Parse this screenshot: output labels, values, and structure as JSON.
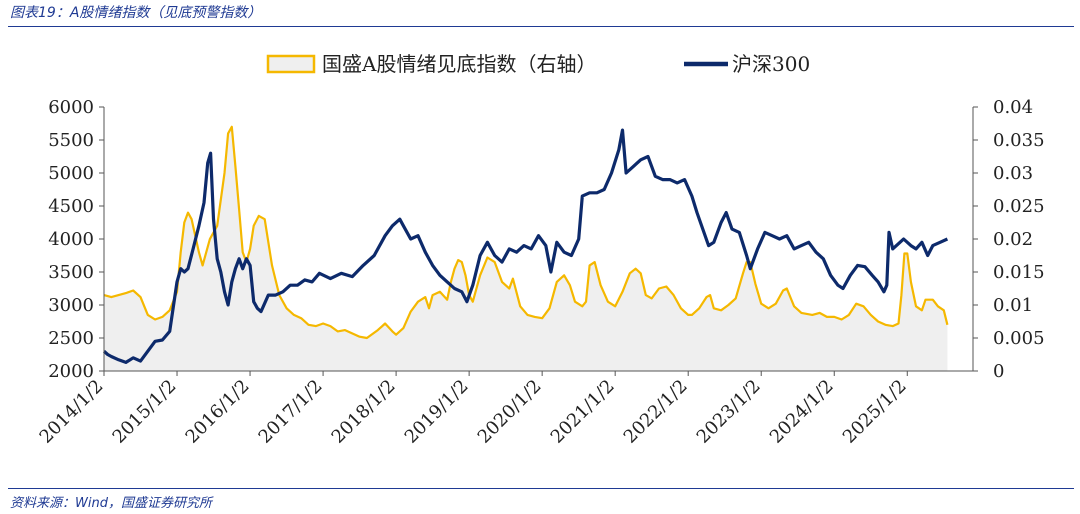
{
  "caption": "图表19：A股情绪指数（见底预警指数）",
  "source": "资料来源：Wind，国盛证券研究所",
  "colors": {
    "brand": "#1f3a93",
    "sentiment": "#f5b800",
    "sentiment_fill": "#efefef",
    "index": "#0d2a6b"
  },
  "chart_data": {
    "type": "line",
    "legend_position": "top",
    "grid": false,
    "x_tick_labels": [
      "2014/1/2",
      "2015/1/2",
      "2016/1/2",
      "2017/1/2",
      "2018/1/2",
      "2019/1/2",
      "2020/1/2",
      "2021/1/2",
      "2022/1/2",
      "2023/1/2",
      "2024/1/2",
      "2025/1/2"
    ],
    "y_left_ticks": [
      "2000",
      "2500",
      "3000",
      "3500",
      "4000",
      "4500",
      "5000",
      "5500",
      "6000"
    ],
    "y_right_ticks": [
      "0",
      "0.005",
      "0.01",
      "0.015",
      "0.02",
      "0.025",
      "0.03",
      "0.035",
      "0.04"
    ],
    "ylim_left": [
      2000,
      6000
    ],
    "ylim_right": [
      0,
      0.04
    ],
    "xlim": [
      2014.0,
      2025.9
    ],
    "series": [
      {
        "name": "国盛A股情绪见底指数（右轴）",
        "style": "area",
        "axis": "right",
        "points": [
          [
            2014.0,
            0.0115
          ],
          [
            2014.1,
            0.0112
          ],
          [
            2014.2,
            0.0115
          ],
          [
            2014.3,
            0.0118
          ],
          [
            2014.4,
            0.0122
          ],
          [
            2014.5,
            0.0112
          ],
          [
            2014.6,
            0.0085
          ],
          [
            2014.7,
            0.0078
          ],
          [
            2014.8,
            0.0082
          ],
          [
            2014.9,
            0.0092
          ],
          [
            2015.0,
            0.012
          ],
          [
            2015.05,
            0.018
          ],
          [
            2015.1,
            0.0225
          ],
          [
            2015.15,
            0.024
          ],
          [
            2015.2,
            0.023
          ],
          [
            2015.3,
            0.018
          ],
          [
            2015.35,
            0.016
          ],
          [
            2015.45,
            0.02
          ],
          [
            2015.55,
            0.022
          ],
          [
            2015.65,
            0.03
          ],
          [
            2015.7,
            0.036
          ],
          [
            2015.75,
            0.037
          ],
          [
            2015.8,
            0.031
          ],
          [
            2015.85,
            0.0245
          ],
          [
            2015.9,
            0.018
          ],
          [
            2015.95,
            0.0165
          ],
          [
            2016.0,
            0.0185
          ],
          [
            2016.05,
            0.022
          ],
          [
            2016.12,
            0.0235
          ],
          [
            2016.2,
            0.023
          ],
          [
            2016.3,
            0.016
          ],
          [
            2016.4,
            0.0115
          ],
          [
            2016.5,
            0.0095
          ],
          [
            2016.6,
            0.0085
          ],
          [
            2016.7,
            0.008
          ],
          [
            2016.8,
            0.007
          ],
          [
            2016.9,
            0.0068
          ],
          [
            2017.0,
            0.0072
          ],
          [
            2017.1,
            0.0068
          ],
          [
            2017.2,
            0.006
          ],
          [
            2017.3,
            0.0062
          ],
          [
            2017.5,
            0.0052
          ],
          [
            2017.6,
            0.005
          ],
          [
            2017.75,
            0.0062
          ],
          [
            2017.85,
            0.0072
          ],
          [
            2017.95,
            0.006
          ],
          [
            2018.0,
            0.0055
          ],
          [
            2018.1,
            0.0065
          ],
          [
            2018.2,
            0.009
          ],
          [
            2018.3,
            0.0105
          ],
          [
            2018.4,
            0.0112
          ],
          [
            2018.45,
            0.0095
          ],
          [
            2018.5,
            0.0115
          ],
          [
            2018.6,
            0.012
          ],
          [
            2018.7,
            0.0108
          ],
          [
            2018.75,
            0.0135
          ],
          [
            2018.8,
            0.0155
          ],
          [
            2018.85,
            0.0168
          ],
          [
            2018.9,
            0.0165
          ],
          [
            2018.95,
            0.0145
          ],
          [
            2019.0,
            0.0115
          ],
          [
            2019.05,
            0.0105
          ],
          [
            2019.15,
            0.0145
          ],
          [
            2019.25,
            0.0172
          ],
          [
            2019.35,
            0.0165
          ],
          [
            2019.45,
            0.0135
          ],
          [
            2019.55,
            0.0125
          ],
          [
            2019.6,
            0.014
          ],
          [
            2019.7,
            0.0098
          ],
          [
            2019.8,
            0.0085
          ],
          [
            2019.9,
            0.0082
          ],
          [
            2020.0,
            0.008
          ],
          [
            2020.1,
            0.0095
          ],
          [
            2020.2,
            0.0135
          ],
          [
            2020.3,
            0.0145
          ],
          [
            2020.38,
            0.013
          ],
          [
            2020.45,
            0.0105
          ],
          [
            2020.55,
            0.0098
          ],
          [
            2020.6,
            0.0105
          ],
          [
            2020.65,
            0.016
          ],
          [
            2020.72,
            0.0165
          ],
          [
            2020.8,
            0.013
          ],
          [
            2020.9,
            0.0105
          ],
          [
            2021.0,
            0.0098
          ],
          [
            2021.1,
            0.012
          ],
          [
            2021.2,
            0.0148
          ],
          [
            2021.28,
            0.0155
          ],
          [
            2021.35,
            0.0148
          ],
          [
            2021.42,
            0.0115
          ],
          [
            2021.5,
            0.011
          ],
          [
            2021.6,
            0.0125
          ],
          [
            2021.7,
            0.0128
          ],
          [
            2021.8,
            0.0115
          ],
          [
            2021.9,
            0.0095
          ],
          [
            2022.0,
            0.0085
          ],
          [
            2022.05,
            0.0085
          ],
          [
            2022.15,
            0.0095
          ],
          [
            2022.25,
            0.0112
          ],
          [
            2022.3,
            0.0115
          ],
          [
            2022.35,
            0.0095
          ],
          [
            2022.45,
            0.0092
          ],
          [
            2022.55,
            0.01
          ],
          [
            2022.65,
            0.011
          ],
          [
            2022.75,
            0.0148
          ],
          [
            2022.8,
            0.0165
          ],
          [
            2022.85,
            0.0165
          ],
          [
            2022.92,
            0.0132
          ],
          [
            2023.0,
            0.0102
          ],
          [
            2023.1,
            0.0095
          ],
          [
            2023.2,
            0.0102
          ],
          [
            2023.3,
            0.0122
          ],
          [
            2023.35,
            0.0125
          ],
          [
            2023.45,
            0.0098
          ],
          [
            2023.55,
            0.0088
          ],
          [
            2023.7,
            0.0085
          ],
          [
            2023.8,
            0.0088
          ],
          [
            2023.9,
            0.0082
          ],
          [
            2024.0,
            0.0082
          ],
          [
            2024.1,
            0.0078
          ],
          [
            2024.2,
            0.0085
          ],
          [
            2024.3,
            0.0102
          ],
          [
            2024.4,
            0.0098
          ],
          [
            2024.5,
            0.0085
          ],
          [
            2024.6,
            0.0075
          ],
          [
            2024.7,
            0.007
          ],
          [
            2024.8,
            0.0068
          ],
          [
            2024.88,
            0.0072
          ],
          [
            2024.92,
            0.0115
          ],
          [
            2024.96,
            0.0178
          ],
          [
            2025.0,
            0.0178
          ],
          [
            2025.05,
            0.0135
          ],
          [
            2025.12,
            0.0098
          ],
          [
            2025.2,
            0.0092
          ],
          [
            2025.25,
            0.0108
          ],
          [
            2025.35,
            0.0108
          ],
          [
            2025.42,
            0.0098
          ],
          [
            2025.5,
            0.0092
          ],
          [
            2025.55,
            0.007
          ]
        ]
      },
      {
        "name": "沪深300",
        "style": "line",
        "axis": "left",
        "points": [
          [
            2014.0,
            2300
          ],
          [
            2014.05,
            2250
          ],
          [
            2014.1,
            2220
          ],
          [
            2014.2,
            2170
          ],
          [
            2014.3,
            2130
          ],
          [
            2014.4,
            2200
          ],
          [
            2014.5,
            2150
          ],
          [
            2014.6,
            2300
          ],
          [
            2014.7,
            2450
          ],
          [
            2014.8,
            2470
          ],
          [
            2014.9,
            2600
          ],
          [
            2015.0,
            3350
          ],
          [
            2015.05,
            3550
          ],
          [
            2015.1,
            3500
          ],
          [
            2015.15,
            3550
          ],
          [
            2015.22,
            3850
          ],
          [
            2015.3,
            4200
          ],
          [
            2015.37,
            4550
          ],
          [
            2015.42,
            5150
          ],
          [
            2015.46,
            5300
          ],
          [
            2015.5,
            4300
          ],
          [
            2015.55,
            3700
          ],
          [
            2015.6,
            3500
          ],
          [
            2015.65,
            3200
          ],
          [
            2015.7,
            3000
          ],
          [
            2015.75,
            3350
          ],
          [
            2015.8,
            3550
          ],
          [
            2015.85,
            3700
          ],
          [
            2015.9,
            3550
          ],
          [
            2015.95,
            3700
          ],
          [
            2016.0,
            3600
          ],
          [
            2016.05,
            3050
          ],
          [
            2016.1,
            2950
          ],
          [
            2016.15,
            2900
          ],
          [
            2016.25,
            3150
          ],
          [
            2016.35,
            3150
          ],
          [
            2016.45,
            3200
          ],
          [
            2016.55,
            3300
          ],
          [
            2016.65,
            3300
          ],
          [
            2016.75,
            3380
          ],
          [
            2016.85,
            3350
          ],
          [
            2016.95,
            3480
          ],
          [
            2017.1,
            3400
          ],
          [
            2017.25,
            3480
          ],
          [
            2017.4,
            3430
          ],
          [
            2017.55,
            3600
          ],
          [
            2017.7,
            3750
          ],
          [
            2017.85,
            4050
          ],
          [
            2017.95,
            4200
          ],
          [
            2018.05,
            4300
          ],
          [
            2018.1,
            4200
          ],
          [
            2018.2,
            4000
          ],
          [
            2018.3,
            4050
          ],
          [
            2018.4,
            3800
          ],
          [
            2018.5,
            3600
          ],
          [
            2018.6,
            3450
          ],
          [
            2018.7,
            3350
          ],
          [
            2018.8,
            3250
          ],
          [
            2018.9,
            3200
          ],
          [
            2018.97,
            3050
          ],
          [
            2019.05,
            3300
          ],
          [
            2019.15,
            3750
          ],
          [
            2019.25,
            3950
          ],
          [
            2019.35,
            3750
          ],
          [
            2019.45,
            3650
          ],
          [
            2019.55,
            3850
          ],
          [
            2019.65,
            3800
          ],
          [
            2019.75,
            3900
          ],
          [
            2019.85,
            3850
          ],
          [
            2019.95,
            4050
          ],
          [
            2020.05,
            3900
          ],
          [
            2020.12,
            3500
          ],
          [
            2020.2,
            3950
          ],
          [
            2020.3,
            3800
          ],
          [
            2020.4,
            3750
          ],
          [
            2020.5,
            4000
          ],
          [
            2020.55,
            4650
          ],
          [
            2020.65,
            4700
          ],
          [
            2020.75,
            4700
          ],
          [
            2020.85,
            4750
          ],
          [
            2020.95,
            5000
          ],
          [
            2021.05,
            5350
          ],
          [
            2021.1,
            5650
          ],
          [
            2021.15,
            5000
          ],
          [
            2021.25,
            5100
          ],
          [
            2021.35,
            5200
          ],
          [
            2021.45,
            5250
          ],
          [
            2021.55,
            4950
          ],
          [
            2021.65,
            4900
          ],
          [
            2021.75,
            4900
          ],
          [
            2021.85,
            4850
          ],
          [
            2021.95,
            4900
          ],
          [
            2022.05,
            4650
          ],
          [
            2022.12,
            4400
          ],
          [
            2022.2,
            4150
          ],
          [
            2022.28,
            3900
          ],
          [
            2022.35,
            3950
          ],
          [
            2022.45,
            4250
          ],
          [
            2022.52,
            4400
          ],
          [
            2022.6,
            4150
          ],
          [
            2022.7,
            4100
          ],
          [
            2022.8,
            3750
          ],
          [
            2022.85,
            3550
          ],
          [
            2022.95,
            3850
          ],
          [
            2023.05,
            4100
          ],
          [
            2023.15,
            4050
          ],
          [
            2023.25,
            4000
          ],
          [
            2023.35,
            4050
          ],
          [
            2023.45,
            3850
          ],
          [
            2023.55,
            3900
          ],
          [
            2023.65,
            3950
          ],
          [
            2023.75,
            3800
          ],
          [
            2023.85,
            3700
          ],
          [
            2023.95,
            3450
          ],
          [
            2024.05,
            3300
          ],
          [
            2024.12,
            3250
          ],
          [
            2024.22,
            3450
          ],
          [
            2024.32,
            3600
          ],
          [
            2024.42,
            3580
          ],
          [
            2024.52,
            3450
          ],
          [
            2024.6,
            3350
          ],
          [
            2024.68,
            3200
          ],
          [
            2024.72,
            3300
          ],
          [
            2024.75,
            4100
          ],
          [
            2024.8,
            3850
          ],
          [
            2024.9,
            3950
          ],
          [
            2024.95,
            4000
          ],
          [
            2025.05,
            3900
          ],
          [
            2025.12,
            3850
          ],
          [
            2025.2,
            3950
          ],
          [
            2025.28,
            3750
          ],
          [
            2025.35,
            3900
          ],
          [
            2025.45,
            3950
          ],
          [
            2025.55,
            4000
          ]
        ]
      }
    ]
  }
}
